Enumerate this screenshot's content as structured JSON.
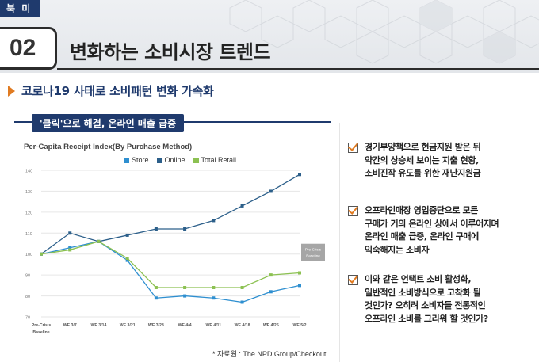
{
  "header": {
    "region": "북 미",
    "number": "02",
    "title": "변화하는 소비시장 트렌드"
  },
  "subtitle": "코로나19 사태로 소비패턴 변화 가속화",
  "panel_tag": "'클릭'으로 해결, 온라인 매출 급증",
  "chart_data": {
    "type": "line",
    "title": "Per-Capita Receipt Index(By Purchase Method)",
    "categories": [
      "Pre-Crisis Baseline",
      "WE 3/7",
      "WE 3/14",
      "WE 3/21",
      "WE 3/28",
      "WE 4/4",
      "WE 4/11",
      "WE 4/18",
      "WE 4/25",
      "WE 5/2"
    ],
    "category_lines": [
      [
        "Pre-Crisis",
        "Baseline"
      ],
      [
        "WE 3/7"
      ],
      [
        "WE 3/14"
      ],
      [
        "WE 3/21"
      ],
      [
        "WE 3/28"
      ],
      [
        "WE 4/4"
      ],
      [
        "WE 4/11"
      ],
      [
        "WE 4/18"
      ],
      [
        "WE 4/25"
      ],
      [
        "WE 5/2"
      ]
    ],
    "yticks": [
      70,
      80,
      90,
      100,
      110,
      120,
      130,
      140
    ],
    "ylim": [
      70,
      140
    ],
    "series": [
      {
        "name": "Store",
        "color": "#2e8fd0",
        "values": [
          100,
          103,
          106,
          97,
          79,
          80,
          79,
          77,
          82,
          85
        ]
      },
      {
        "name": "Online",
        "color": "#2c5f8a",
        "values": [
          100,
          110,
          106,
          109,
          112,
          112,
          116,
          123,
          130,
          138
        ]
      },
      {
        "name": "Total Retail",
        "color": "#8cc152",
        "values": [
          100,
          102,
          106,
          98,
          84,
          84,
          84,
          84,
          90,
          91
        ]
      }
    ],
    "annotation": [
      "Pre-Crisis",
      "Baseline"
    ],
    "annotation_value": 100
  },
  "source": "* 자료원 : The NPD Group/Checkout",
  "bullets": [
    {
      "lines": [
        "경기부양책으로 현금지원 받은 뒤",
        "약간의 상승세 보이는 지출 현황,",
        "소비진작 유도를 위한 재난지원금"
      ]
    },
    {
      "lines": [
        "오프라인매장 영업중단으로 모든",
        "구매가 거의 온라인 상에서 이루어지며",
        "온라인 매출 급증, 온라인 구매에",
        "익숙해지는 소비자"
      ]
    },
    {
      "lines": [
        "이와 같은 언택트 소비 활성화,",
        "일반적인 소비방식으로 고착화 될",
        "것인가? 오히려 소비자들 전통적인",
        "오프라인 소비를 그리워 할 것인가?"
      ]
    }
  ]
}
